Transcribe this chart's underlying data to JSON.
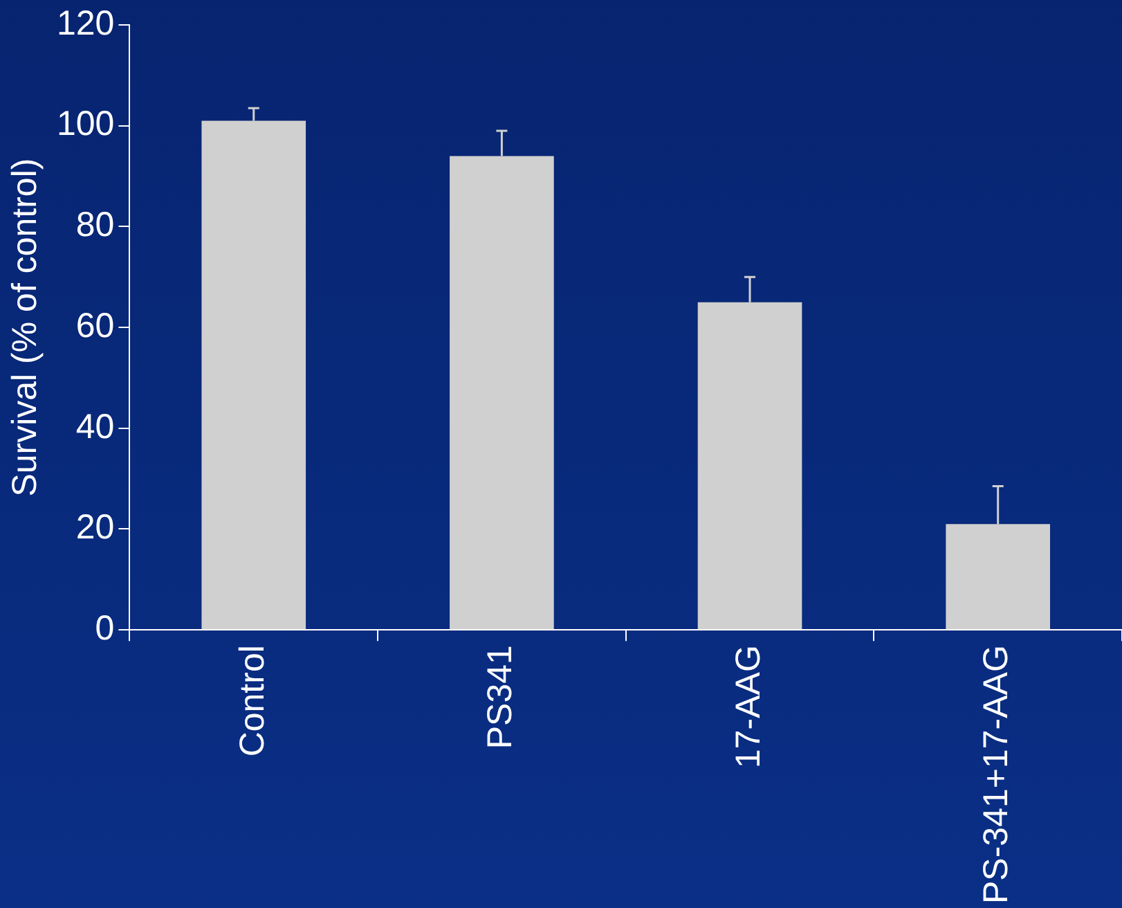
{
  "chart_data": {
    "type": "bar",
    "ylabel": "Survival (% of control)",
    "categories": [
      "Control",
      "PS341",
      "17-AAG",
      "PS-341+17-AAG"
    ],
    "values": [
      101,
      94,
      65,
      21
    ],
    "errors": [
      [
        101,
        103.5
      ],
      [
        94,
        99
      ],
      [
        65,
        70
      ],
      [
        21,
        28.5
      ]
    ],
    "color": "#d0d0d0",
    "ylim": [
      0,
      120
    ],
    "yticks": [
      0,
      20,
      40,
      60,
      80,
      100,
      120
    ],
    "grid": false,
    "legend": false
  }
}
